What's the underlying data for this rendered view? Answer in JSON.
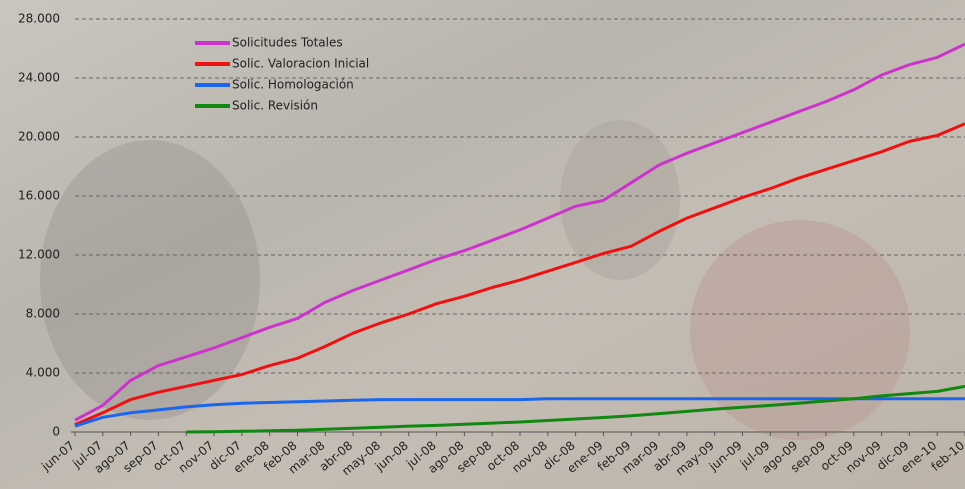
{
  "chart_data": {
    "type": "line",
    "categories": [
      "jun-07",
      "jul-07",
      "ago-07",
      "sep-07",
      "oct-07",
      "nov-07",
      "dic-07",
      "ene-08",
      "feb-08",
      "mar-08",
      "abr-08",
      "may-08",
      "jun-08",
      "jul-08",
      "ago-08",
      "sep-08",
      "oct-08",
      "nov-08",
      "dic-08",
      "ene-09",
      "feb-09",
      "mar-09",
      "abr-09",
      "may-09",
      "jun-09",
      "jul-09",
      "ago-09",
      "sep-09",
      "oct-09",
      "nov-09",
      "dic-09",
      "ene-10",
      "feb-10"
    ],
    "series": [
      {
        "name": "Solicitudes Totales",
        "color": "#cc33cc",
        "values": [
          800,
          1800,
          3500,
          4500,
          5100,
          5700,
          6400,
          7100,
          7700,
          8800,
          9600,
          10300,
          11000,
          11700,
          12300,
          13000,
          13700,
          14500,
          15300,
          15700,
          16900,
          18100,
          18900,
          19600,
          20300,
          21000,
          21700,
          22400,
          23200,
          24200,
          24900,
          25400,
          26300
        ]
      },
      {
        "name": "Solic. Valoracion Inicial",
        "color": "#ee1111",
        "values": [
          500,
          1300,
          2200,
          2700,
          3100,
          3500,
          3900,
          4500,
          5000,
          5800,
          6700,
          7400,
          8000,
          8700,
          9200,
          9800,
          10300,
          10900,
          11500,
          12100,
          12600,
          13600,
          14500,
          15200,
          15900,
          16500,
          17200,
          17800,
          18400,
          19000,
          19700,
          20100,
          20900
        ]
      },
      {
        "name": "Solic. Homologación",
        "color": "#1a66ee",
        "values": [
          400,
          1000,
          1300,
          1500,
          1700,
          1850,
          1950,
          2000,
          2050,
          2100,
          2150,
          2200,
          2200,
          2200,
          2200,
          2200,
          2200,
          2250,
          2250,
          2250,
          2250,
          2250,
          2250,
          2250,
          2250,
          2250,
          2250,
          2250,
          2250,
          2250,
          2250,
          2250,
          2250
        ]
      },
      {
        "name": "Solic. Revisión",
        "color": "#118811",
        "values": [
          null,
          null,
          null,
          null,
          0,
          20,
          50,
          80,
          120,
          180,
          250,
          320,
          400,
          450,
          520,
          600,
          680,
          780,
          880,
          980,
          1100,
          1250,
          1400,
          1550,
          1680,
          1800,
          1950,
          2100,
          2250,
          2450,
          2600,
          2750,
          3100
        ]
      }
    ],
    "ylim": [
      0,
      28000
    ],
    "yticks": [
      0,
      {
        "value": 4000,
        "label": "4.000"
      },
      {
        "value": 8000,
        "label": "8.000"
      },
      {
        "value": 12000,
        "label": "12.000"
      },
      {
        "value": 16000,
        "label": "16.000"
      },
      {
        "value": 20000,
        "label": "20.000"
      },
      {
        "value": 24000,
        "label": "24.000"
      },
      {
        "value": 28000,
        "label": "28.000"
      }
    ],
    "grid": true,
    "legend": "upper left"
  }
}
